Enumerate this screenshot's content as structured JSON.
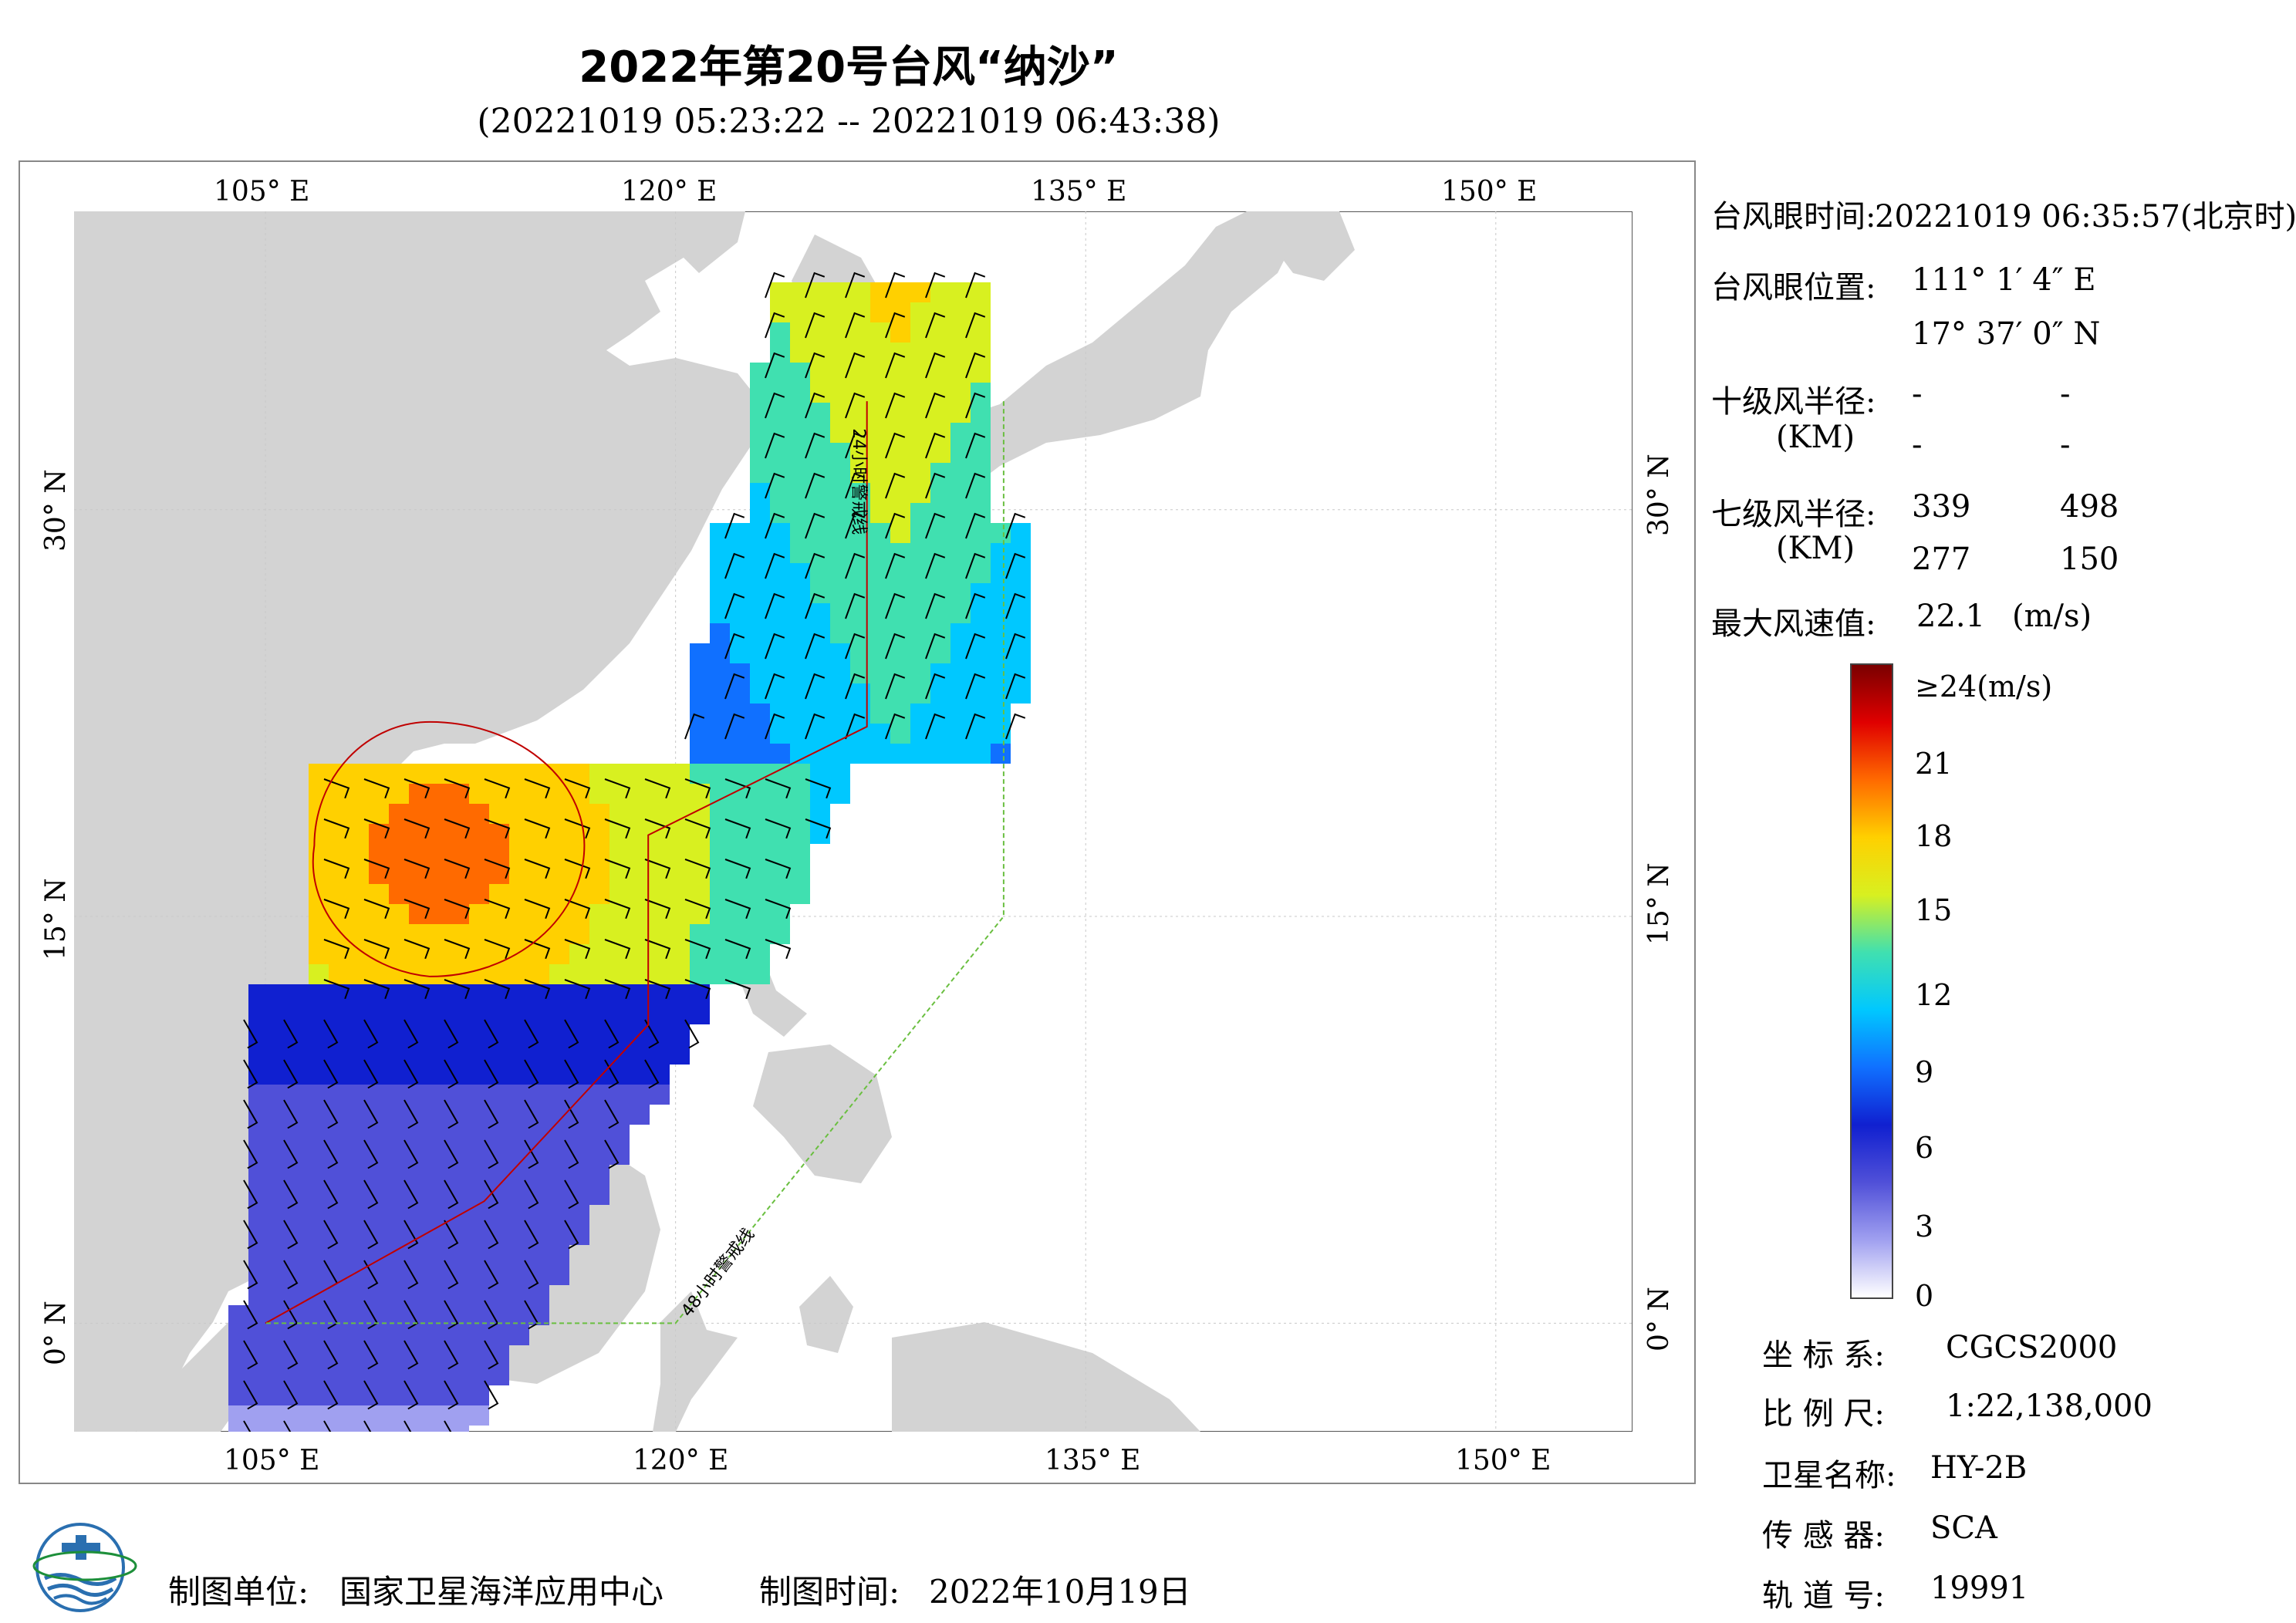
{
  "header": {
    "title": "2022年第20号台风“纳沙”",
    "subtitle": "(20221019 05:23:22 -- 20221019 06:43:38)"
  },
  "axes": {
    "lon_labels": [
      "105° E",
      "120° E",
      "135° E",
      "150° E"
    ],
    "lat_labels": [
      "30° N",
      "15° N",
      "0° N"
    ],
    "lon_ticks": [
      105,
      120,
      135,
      150
    ],
    "lat_ticks": [
      30,
      15,
      0
    ],
    "extent": {
      "lon_min": 98,
      "lon_max": 155,
      "lat_min": -4,
      "lat_max": 41
    }
  },
  "track_lines": {
    "warn24": "24小时警戒线",
    "warn48": "48小时警戒线"
  },
  "info": {
    "eye_time_label": "台风眼时间:",
    "eye_time_value": "20221019 06:35:57(北京时)",
    "eye_pos_label": "台风眼位置:",
    "eye_lon": "111° 1′ 4″ E",
    "eye_lat": "17° 37′ 0″ N",
    "r10_label": "十级风半径:",
    "r10_unit": "(KM)",
    "r10_values": [
      "-",
      "-",
      "-",
      "-"
    ],
    "r7_label": "七级风半径:",
    "r7_unit": "(KM)",
    "r7_values": [
      "339",
      "498",
      "277",
      "150"
    ],
    "max_wind_label": "最大风速值:",
    "max_wind_value": "22.1",
    "max_wind_unit": "(m/s)"
  },
  "colorbar": {
    "labels": [
      "≥24(m/s)",
      "21",
      "18",
      "15",
      "12",
      "9",
      "6",
      "3",
      "0"
    ],
    "stops": [
      "#7a0000",
      "#e00000",
      "#ff6a00",
      "#ffd000",
      "#d8f020",
      "#40e0b0",
      "#00c8ff",
      "#1070ff",
      "#1020d0",
      "#5050d8",
      "#a0a0f0",
      "#ffffff"
    ]
  },
  "meta": {
    "crs_label": "坐 标 系:",
    "crs_value": "CGCS2000",
    "scale_label": "比 例 尺:",
    "scale_value": "1:22,138,000",
    "sat_label": "卫星名称:",
    "sat_value": "HY-2B",
    "sensor_label": "传 感 器:",
    "sensor_value": "SCA",
    "orbit_label": "轨 道 号:",
    "orbit_value": "19991"
  },
  "footer": {
    "unit_label": "制图单位:",
    "unit_value": "国家卫星海洋应用中心",
    "time_label": "制图时间:",
    "time_value": "2022年10月19日"
  },
  "colors": {
    "land": "#d3d3d3",
    "sea": "#ffffff",
    "track": "#c00000",
    "warn48": "#6abf40"
  }
}
